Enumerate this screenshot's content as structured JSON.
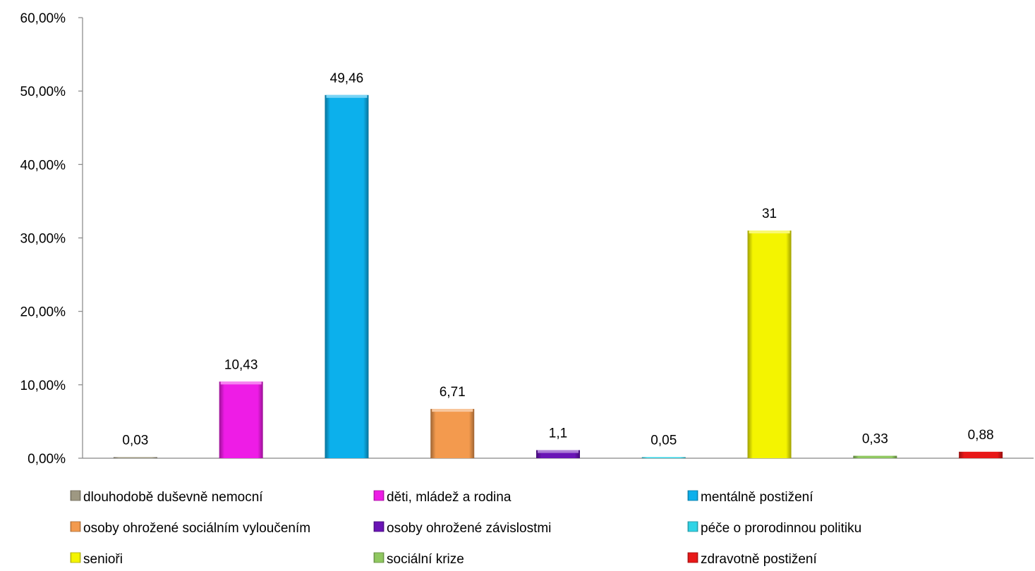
{
  "chart_data": {
    "type": "bar",
    "title": "",
    "xlabel": "",
    "ylabel": "",
    "ylim": [
      0,
      60
    ],
    "y_ticks": [
      "0,00%",
      "10,00%",
      "20,00%",
      "30,00%",
      "40,00%",
      "50,00%",
      "60,00%"
    ],
    "grid": false,
    "legend_position": "bottom",
    "categories": [
      "dlouhodobě duševně nemocní",
      "děti, mládež a rodina",
      "mentálně postižení",
      "osoby ohrožené sociálním vyloučením",
      "osoby ohrožené závislostmi",
      "péče o prorodinnou politiku",
      "senioři",
      "sociální krize",
      "zdravotně postižení"
    ],
    "values": [
      0.03,
      10.43,
      49.46,
      6.71,
      1.1,
      0.05,
      31,
      0.33,
      0.88
    ],
    "data_labels": [
      "0,03",
      "10,43",
      "49,46",
      "6,71",
      "1,1",
      "0,05",
      "31",
      "0,33",
      "0,88"
    ],
    "colors": [
      "#9e9882",
      "#ee1ce6",
      "#0cb0ec",
      "#f39a4e",
      "#6a14b6",
      "#30d4e6",
      "#f4f400",
      "#90c860",
      "#e81818"
    ]
  }
}
